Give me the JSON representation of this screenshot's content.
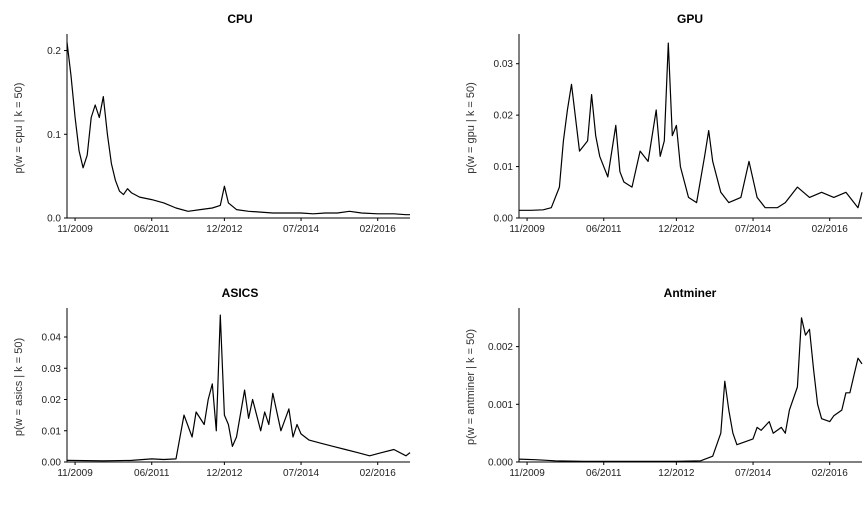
{
  "chart_data": [
    {
      "type": "line",
      "title": "CPU",
      "ylabel": "p(w = cpu | k = 50)",
      "xlabel": "",
      "x_ticks": [
        "11/2009",
        "06/2011",
        "12/2012",
        "07/2014",
        "02/2016"
      ],
      "y_ticks": [
        "0.0",
        "0.1",
        "0.2"
      ],
      "ylim": [
        0,
        0.215
      ],
      "grid": false,
      "x": [
        "09/2009",
        "10/2009",
        "11/2009",
        "12/2009",
        "01/2010",
        "02/2010",
        "03/2010",
        "04/2010",
        "05/2010",
        "06/2010",
        "07/2010",
        "08/2010",
        "09/2010",
        "10/2010",
        "11/2010",
        "12/2010",
        "01/2011",
        "03/2011",
        "06/2011",
        "09/2011",
        "12/2011",
        "03/2012",
        "06/2012",
        "09/2012",
        "11/2012",
        "12/2012",
        "01/2013",
        "03/2013",
        "06/2013",
        "09/2013",
        "12/2013",
        "03/2014",
        "07/2014",
        "10/2014",
        "01/2015",
        "04/2015",
        "07/2015",
        "10/2015",
        "02/2016",
        "06/2016",
        "09/2016",
        "10/2016"
      ],
      "values": [
        0.21,
        0.17,
        0.12,
        0.08,
        0.06,
        0.075,
        0.12,
        0.135,
        0.12,
        0.145,
        0.1,
        0.065,
        0.045,
        0.032,
        0.028,
        0.035,
        0.03,
        0.025,
        0.022,
        0.018,
        0.012,
        0.008,
        0.01,
        0.012,
        0.015,
        0.038,
        0.018,
        0.01,
        0.008,
        0.007,
        0.006,
        0.006,
        0.006,
        0.005,
        0.006,
        0.006,
        0.008,
        0.006,
        0.005,
        0.005,
        0.004,
        0.004
      ]
    },
    {
      "type": "line",
      "title": "GPU",
      "ylabel": "p(w = gpu | k = 50)",
      "xlabel": "",
      "x_ticks": [
        "11/2009",
        "06/2011",
        "12/2012",
        "07/2014",
        "02/2016"
      ],
      "y_ticks": [
        "0.00",
        "0.01",
        "0.02",
        "0.03"
      ],
      "ylim": [
        0,
        0.035
      ],
      "grid": false,
      "x": [
        "09/2009",
        "12/2009",
        "03/2010",
        "05/2010",
        "07/2010",
        "08/2010",
        "09/2010",
        "10/2010",
        "12/2010",
        "02/2011",
        "03/2011",
        "04/2011",
        "05/2011",
        "07/2011",
        "09/2011",
        "10/2011",
        "11/2011",
        "01/2012",
        "03/2012",
        "05/2012",
        "07/2012",
        "08/2012",
        "09/2012",
        "10/2012",
        "11/2012",
        "12/2012",
        "01/2013",
        "03/2013",
        "05/2013",
        "07/2013",
        "08/2013",
        "09/2013",
        "11/2013",
        "01/2014",
        "04/2014",
        "06/2014",
        "08/2014",
        "10/2014",
        "01/2015",
        "03/2015",
        "06/2015",
        "09/2015",
        "12/2015",
        "03/2016",
        "06/2016",
        "09/2016",
        "10/2016"
      ],
      "values": [
        0.0015,
        0.0015,
        0.0016,
        0.002,
        0.006,
        0.015,
        0.021,
        0.026,
        0.013,
        0.015,
        0.024,
        0.016,
        0.012,
        0.008,
        0.018,
        0.009,
        0.007,
        0.006,
        0.013,
        0.011,
        0.021,
        0.012,
        0.015,
        0.034,
        0.016,
        0.018,
        0.01,
        0.004,
        0.003,
        0.012,
        0.017,
        0.011,
        0.005,
        0.003,
        0.004,
        0.011,
        0.004,
        0.002,
        0.002,
        0.003,
        0.006,
        0.004,
        0.005,
        0.004,
        0.005,
        0.002,
        0.005
      ]
    },
    {
      "type": "line",
      "title": "ASICS",
      "ylabel": "p(w = asics | k = 50)",
      "xlabel": "",
      "x_ticks": [
        "11/2009",
        "06/2011",
        "12/2012",
        "07/2014",
        "02/2016"
      ],
      "y_ticks": [
        "0.00",
        "0.01",
        "0.02",
        "0.03",
        "0.04"
      ],
      "ylim": [
        0,
        0.048
      ],
      "grid": false,
      "x": [
        "09/2009",
        "06/2010",
        "01/2011",
        "06/2011",
        "09/2011",
        "12/2011",
        "02/2012",
        "04/2012",
        "05/2012",
        "07/2012",
        "08/2012",
        "09/2012",
        "10/2012",
        "11/2012",
        "12/2012",
        "01/2013",
        "02/2013",
        "03/2013",
        "05/2013",
        "06/2013",
        "07/2013",
        "09/2013",
        "10/2013",
        "11/2013",
        "12/2013",
        "02/2014",
        "04/2014",
        "05/2014",
        "06/2014",
        "07/2014",
        "09/2014",
        "12/2014",
        "03/2015",
        "06/2015",
        "09/2015",
        "12/2015",
        "03/2016",
        "06/2016",
        "09/2016",
        "10/2016"
      ],
      "values": [
        0.0005,
        0.0004,
        0.0005,
        0.001,
        0.0008,
        0.001,
        0.015,
        0.008,
        0.016,
        0.012,
        0.02,
        0.025,
        0.01,
        0.047,
        0.015,
        0.012,
        0.005,
        0.008,
        0.023,
        0.014,
        0.02,
        0.01,
        0.016,
        0.012,
        0.022,
        0.01,
        0.017,
        0.008,
        0.012,
        0.009,
        0.007,
        0.006,
        0.005,
        0.004,
        0.003,
        0.002,
        0.003,
        0.004,
        0.002,
        0.003
      ]
    },
    {
      "type": "line",
      "title": "Antminer",
      "ylabel": "p(w = antminer | k = 50)",
      "xlabel": "",
      "x_ticks": [
        "11/2009",
        "06/2011",
        "12/2012",
        "07/2014",
        "02/2016"
      ],
      "y_ticks": [
        "0.000",
        "0.001",
        "0.002"
      ],
      "ylim": [
        0,
        0.0026
      ],
      "grid": false,
      "x": [
        "09/2009",
        "01/2010",
        "06/2010",
        "01/2011",
        "06/2011",
        "01/2012",
        "06/2012",
        "12/2012",
        "06/2013",
        "09/2013",
        "11/2013",
        "12/2013",
        "01/2014",
        "02/2014",
        "03/2014",
        "05/2014",
        "07/2014",
        "08/2014",
        "09/2014",
        "11/2014",
        "12/2014",
        "02/2015",
        "03/2015",
        "04/2015",
        "06/2015",
        "07/2015",
        "08/2015",
        "09/2015",
        "10/2015",
        "11/2015",
        "12/2015",
        "02/2016",
        "03/2016",
        "05/2016",
        "06/2016",
        "07/2016",
        "08/2016",
        "09/2016",
        "10/2016"
      ],
      "values": [
        5e-05,
        4e-05,
        2e-05,
        1e-05,
        1e-05,
        1e-05,
        1e-05,
        1e-05,
        2e-05,
        0.0001,
        0.0005,
        0.0014,
        0.0009,
        0.0005,
        0.0003,
        0.00035,
        0.0004,
        0.0006,
        0.00055,
        0.0007,
        0.0005,
        0.0006,
        0.0005,
        0.0009,
        0.0013,
        0.0025,
        0.0022,
        0.0023,
        0.0016,
        0.001,
        0.00075,
        0.0007,
        0.0008,
        0.0009,
        0.0012,
        0.0012,
        0.0015,
        0.0018,
        0.0017
      ]
    }
  ]
}
